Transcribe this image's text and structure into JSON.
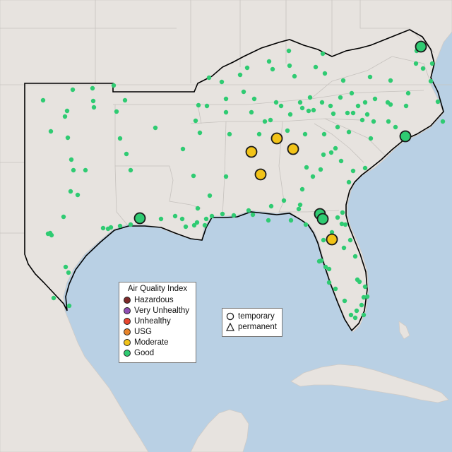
{
  "legend": {
    "title": "Air Quality Index",
    "categories": [
      {
        "label": "Hazardous",
        "color": "#7e2a2a"
      },
      {
        "label": "Very Unhealthy",
        "color": "#8f4fb3"
      },
      {
        "label": "Unhealthy",
        "color": "#e8462f"
      },
      {
        "label": "USG",
        "color": "#e8842a"
      },
      {
        "label": "Moderate",
        "color": "#f2c318"
      },
      {
        "label": "Good",
        "color": "#2fcb72"
      }
    ]
  },
  "shape_legend": {
    "temporary": "temporary",
    "permanent": "permanent"
  },
  "colors": {
    "ocean": "#b9d0e4",
    "land": "#e7e3df",
    "good": "#2fcb72",
    "moderate": "#f2c318"
  }
}
